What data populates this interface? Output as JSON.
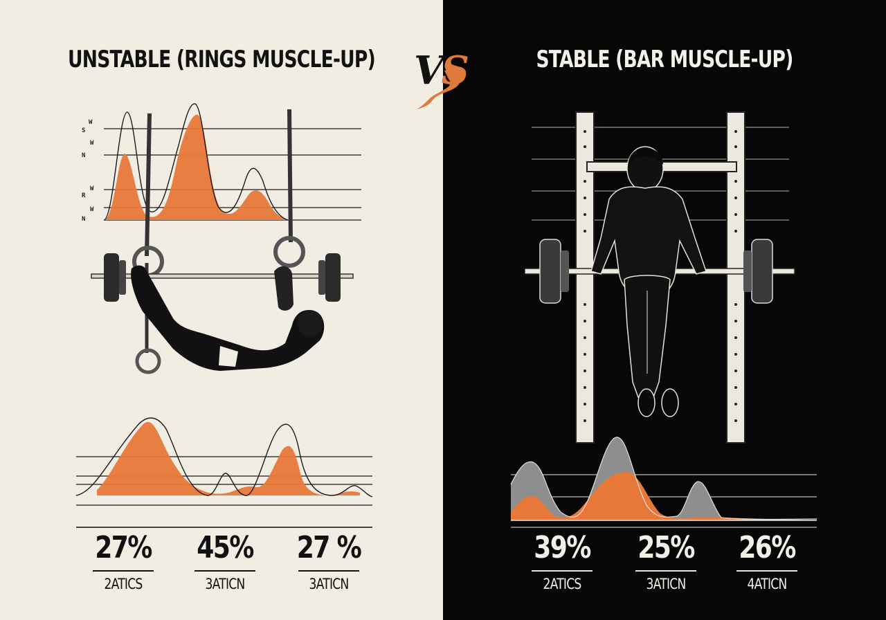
{
  "left": {
    "title": "UNSTABLE (RINGS MUSCLE-UP)",
    "axis_marks": [
      "S",
      "W",
      "N",
      "W",
      "W",
      "R",
      "W",
      "N"
    ],
    "stats": [
      {
        "value": "27%",
        "label": "2ATICS"
      },
      {
        "value": "45%",
        "label": "3ATICN"
      },
      {
        "value": "27 %",
        "label": "3ATICN"
      }
    ]
  },
  "right": {
    "title": "STABLE (BAR MUSCLE-UP)",
    "stats": [
      {
        "value": "39%",
        "label": "2ATICS"
      },
      {
        "value": "25%",
        "label": "3ATICN"
      },
      {
        "value": "26%",
        "label": "4ATICN"
      }
    ]
  },
  "vs": {
    "v": "V",
    "s": "S"
  },
  "colors": {
    "accent": "#e8783a",
    "left_bg": "#f1ede3",
    "right_bg": "#070707",
    "ink": "#111111"
  },
  "icons": [
    "rings-athlete-illustration",
    "barbell-icon",
    "bar-athlete-illustration",
    "squat-rack-icon"
  ]
}
